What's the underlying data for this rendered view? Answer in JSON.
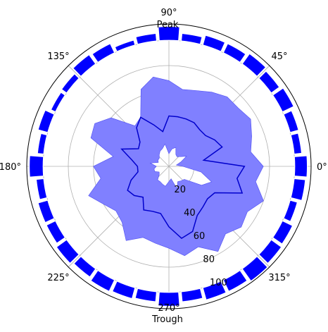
{
  "chart_data": {
    "type": "polar",
    "theta_unit": "degrees",
    "r_ticks": [
      20,
      40,
      60,
      80,
      100
    ],
    "r_max": 113,
    "angle_ticks": [
      {
        "angle": 0,
        "label": "0$^\\circ$",
        "display": "0°"
      },
      {
        "angle": 45,
        "label": "45$^\\circ$",
        "display": "45°"
      },
      {
        "angle": 90,
        "label": "90$^\\circ$",
        "display": "90°"
      },
      {
        "angle": 135,
        "label": "135$^\\circ$",
        "display": "135°"
      },
      {
        "angle": 180,
        "label": "180$^\\circ$",
        "display": "180°"
      },
      {
        "angle": 225,
        "label": "225$^\\circ$",
        "display": "225°"
      },
      {
        "angle": 270,
        "label": "270$^\\circ$",
        "display": "270°"
      },
      {
        "angle": 315,
        "label": "315$^\\circ$",
        "display": "315°"
      }
    ],
    "annotations": {
      "top": "Peak",
      "bottom": "Trough"
    },
    "colors": {
      "band": "#8080ff",
      "band_edge": "#4d4df2",
      "line": "#0000cc",
      "bars": "#0000ff",
      "grid": "#b0b0b0"
    },
    "band": {
      "theta": [
        0,
        10,
        20,
        30,
        40,
        50,
        60,
        70,
        80,
        90,
        100,
        110,
        120,
        130,
        140,
        150,
        160,
        170,
        180,
        190,
        200,
        210,
        220,
        230,
        240,
        250,
        260,
        270,
        280,
        290,
        300,
        310,
        320,
        330,
        340,
        350
      ],
      "inner": [
        11,
        6,
        10,
        16,
        12,
        10,
        11,
        16,
        14,
        10,
        18,
        15,
        14,
        12,
        10,
        10,
        9,
        15,
        10,
        12,
        12,
        9,
        10,
        14,
        14,
        15,
        16,
        12,
        10,
        19,
        14,
        15,
        16,
        30,
        36,
        26
      ],
      "outer": [
        75,
        66,
        70,
        75,
        72,
        72,
        68,
        64,
        62,
        68,
        72,
        65,
        45,
        42,
        60,
        68,
        66,
        45,
        60,
        55,
        68,
        60,
        55,
        58,
        68,
        60,
        62,
        65,
        72,
        68,
        78,
        70,
        75,
        72,
        80,
        70
      ]
    },
    "line": {
      "theta": [
        0,
        10,
        20,
        30,
        40,
        50,
        60,
        70,
        80,
        90,
        100,
        110,
        120,
        130,
        140,
        150,
        160,
        170,
        180,
        190,
        200,
        210,
        220,
        230,
        240,
        250,
        260,
        270,
        280,
        290,
        300,
        310,
        320,
        330,
        340,
        350
      ],
      "values": [
        60,
        28,
        45,
        42,
        38,
        38,
        40,
        40,
        40,
        40,
        28,
        35,
        45,
        40,
        30,
        28,
        40,
        30,
        25,
        25,
        32,
        38,
        36,
        32,
        40,
        38,
        38,
        48,
        58,
        55,
        45,
        42,
        40,
        42,
        62,
        55
      ]
    },
    "bars": {
      "theta": [
        0,
        10,
        20,
        30,
        40,
        50,
        60,
        70,
        80,
        90,
        100,
        110,
        120,
        130,
        140,
        150,
        160,
        170,
        180,
        190,
        200,
        210,
        220,
        230,
        240,
        250,
        260,
        270,
        280,
        290,
        300,
        310,
        320,
        330,
        340,
        350
      ],
      "bottom": [
        100,
        100,
        100,
        100,
        100,
        100,
        100,
        100,
        100,
        100,
        100,
        100,
        100,
        100,
        100,
        100,
        100,
        100,
        100,
        100,
        100,
        100,
        100,
        100,
        100,
        100,
        100,
        100,
        100,
        100,
        100,
        100,
        100,
        100,
        100,
        100
      ],
      "height": [
        10,
        6,
        7,
        10,
        8,
        10,
        8,
        8,
        6,
        11,
        6,
        4,
        8,
        9,
        5,
        4,
        8,
        5,
        11,
        6,
        8,
        8,
        10,
        8,
        10,
        9,
        8,
        11,
        8,
        10,
        10,
        12,
        10,
        9,
        6,
        9
      ]
    }
  }
}
